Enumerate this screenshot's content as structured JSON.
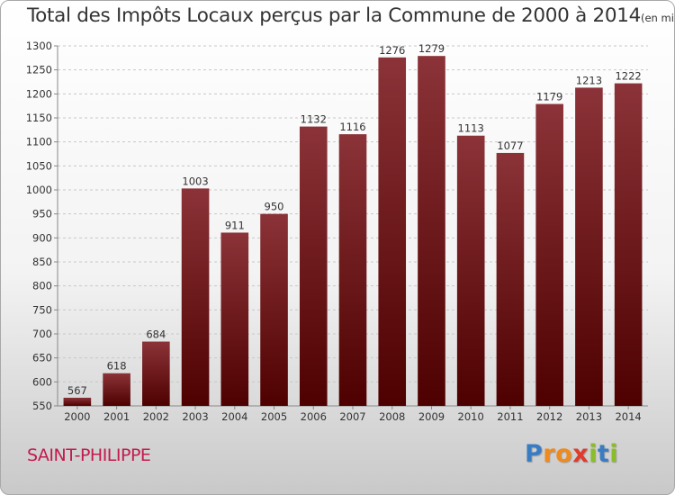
{
  "chart_data": {
    "type": "bar",
    "title": "Total des Impôts Locaux perçus par la Commune de 2000 à 2014",
    "unit_label": "(en milliers d'€)",
    "categories": [
      "2000",
      "2001",
      "2002",
      "2003",
      "2004",
      "2005",
      "2006",
      "2007",
      "2008",
      "2009",
      "2010",
      "2011",
      "2012",
      "2013",
      "2014"
    ],
    "values": [
      567,
      618,
      684,
      1003,
      911,
      950,
      1132,
      1116,
      1276,
      1279,
      1113,
      1077,
      1179,
      1213,
      1222
    ],
    "ylim": [
      550,
      1300
    ],
    "yticks": [
      550,
      600,
      650,
      700,
      750,
      800,
      850,
      900,
      950,
      1000,
      1050,
      1100,
      1150,
      1200,
      1250,
      1300
    ],
    "grid": true,
    "bar_color_top": "#8b3338",
    "bar_color_bottom": "#4e0000"
  },
  "commune": "SAINT-PHILIPPE",
  "logo": {
    "letters": [
      "P",
      "r",
      "o",
      "x",
      "i",
      "t",
      "i"
    ],
    "colors": [
      "#3a7cc2",
      "#f08a1c",
      "#f08a1c",
      "#e03a2a",
      "#8bbd2a",
      "#3a7cc2",
      "#8bbd2a"
    ]
  }
}
